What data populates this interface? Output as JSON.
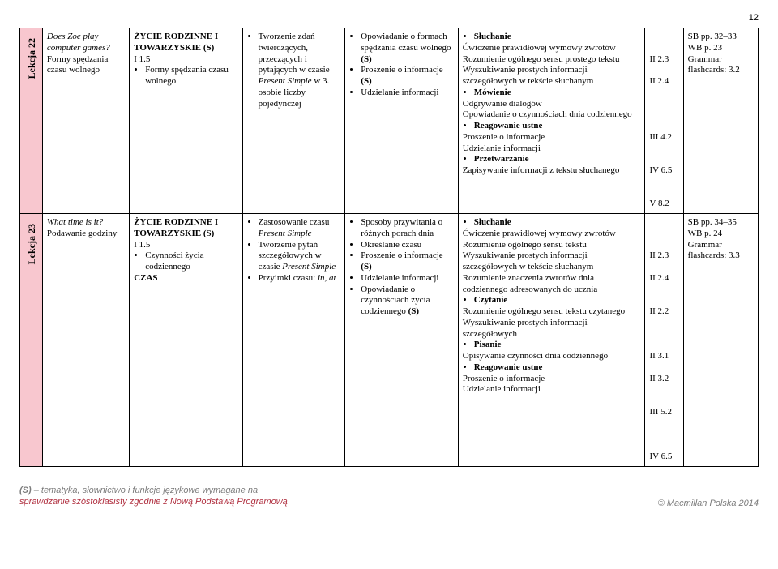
{
  "page_number": "12",
  "rows": [
    {
      "lesson_label": "Lekcja 22",
      "topic_html": "<span class='it'>Does Zoe play computer games?</span><br>Formy spędzania czasu wolnego",
      "scope_html": "<span class='bold'>ŻYCIE RODZINNE I TOWARZYSKIE (S)</span><br>I 1.5<ul class='b'><li>Formy spędzania czasu wolnego</li></ul>",
      "grammar_html": "<ul class='b'><li>Tworzenie zdań twierdzących, przeczących i pytających w czasie <span class='it'>Present Simple</span> w 3. osobie liczby pojedynczej</li></ul>",
      "functions_html": "<ul class='b'><li>Opowiadanie o formach spędzania czasu wolnego <span class='bold'>(S)</span></li><li>Proszenie o informacje <span class='bold'>(S)</span></li><li>Udzielanie informacji</li></ul>",
      "skills_html": "<ul class='b'><li><span class='bold'>Słuchanie</span></li></ul>Ćwiczenie prawidłowej wymowy zwrotów<br>Rozumienie ogólnego sensu prostego tekstu<br>Wyszukiwanie prostych informacji szczegółowych w tekście słuchanym<ul class='b'><li><span class='bold'>Mówienie</span></li></ul>Odgrywanie dialogów<br>Opowiadanie o czynnościach dnia codziennego<ul class='b'><li><span class='bold'>Reagowanie ustne</span></li></ul>Proszenie o informacje<br>Udzielanie informacji<ul class='b'><li><span class='bold'>Przetwarzanie</span></li></ul>Zapisywanie informacji z tekstu słuchanego",
      "codes_html": "<br><br>II  2.3<br><br>II  2.4<br><br><br><br><br>III  4.2<br><br><br>IV  6.5<br><br><br>V  8.2",
      "refs_html": "SB pp. 32–33<br>WB p. 23<br>Grammar flashcards: 3.2"
    },
    {
      "lesson_label": "Lekcja 23",
      "topic_html": "<span class='it'>What time is it?</span><br>Podawanie godziny",
      "scope_html": "<span class='bold'>ŻYCIE RODZINNE I TOWARZYSKIE (S)</span><br>I 1.5<ul class='b'><li>Czynności życia codziennego</li></ul><span class='bold'>CZAS</span>",
      "grammar_html": "<ul class='b'><li>Zastosowanie czasu <span class='it'>Present Simple</span></li><li>Tworzenie pytań szczegółowych w czasie <span class='it'>Present Simple</span></li><li>Przyimki czasu: <span class='it'>in, at</span></li></ul>",
      "functions_html": "<ul class='b'><li>Sposoby przywitania o różnych porach dnia</li><li>Określanie czasu</li><li>Proszenie o informacje <span class='bold'>(S)</span></li><li>Udzielanie informacji</li><li>Opowiadanie o czynnościach życia codziennego <span class='bold'>(S)</span></li></ul>",
      "skills_html": "<ul class='b'><li><span class='bold'>Słuchanie</span></li></ul>Ćwiczenie prawidłowej wymowy zwrotów<br>Rozumienie ogólnego sensu tekstu<br>Wyszukiwanie prostych informacji szczegółowych w tekście słuchanym<br>Rozumienie znaczenia zwrotów dnia codziennego adresowanych do ucznia<ul class='b'><li><span class='bold'>Czytanie</span></li></ul>Rozumienie ogólnego sensu tekstu czytanego<br>Wyszukiwanie prostych informacji szczegółowych<ul class='b'><li><span class='bold'>Pisanie</span></li></ul>Opisywanie czynności dnia codziennego<ul class='b'><li><span class='bold'>Reagowanie ustne</span></li></ul>Proszenie o informacje<br>Udzielanie informacji",
      "codes_html": "<br><br><br>II  2.3<br><br>II  2.4<br><br><br>II  2.2<br><br><br><br>II  3.1<br><br>II  3.2<br><br><br>III  5.2<br><br><br><br>IV  6.5",
      "refs_html": "SB pp. 34–35<br>WB p. 24<br>Grammar flashcards: 3.3"
    }
  ],
  "footer": {
    "left_line1_prefix": "(S)",
    "left_line1_rest": " – tematyka, słownictwo i funkcje językowe wymagane na",
    "left_line2": "sprawdzanie szóstoklasisty zgodnie z Nową Podstawą Programową",
    "right": "© Macmillan Polska 2014"
  }
}
